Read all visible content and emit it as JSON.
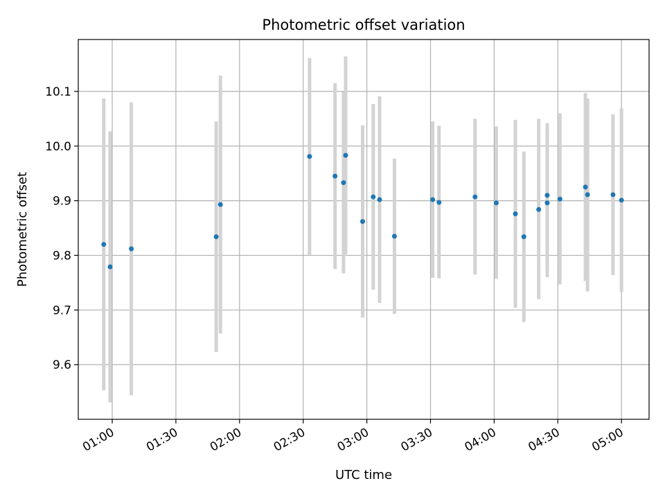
{
  "chart_data": {
    "type": "scatter",
    "title": "Photometric offset variation",
    "xlabel": "UTC time",
    "ylabel": "Photometric offset",
    "x_unit": "UTC time (HH:MM)",
    "xlim": [
      "00:44",
      "05:13"
    ],
    "ylim": [
      9.5,
      10.195
    ],
    "xticks": [
      "01:00",
      "01:30",
      "02:00",
      "02:30",
      "03:00",
      "03:30",
      "04:00",
      "04:30",
      "05:00"
    ],
    "yticks": [
      9.6,
      9.7,
      9.8,
      9.9,
      10.0,
      10.1
    ],
    "ytick_labels": [
      "9.6",
      "9.7",
      "9.8",
      "9.9",
      "10.0",
      "10.1"
    ],
    "grid": true,
    "colors": {
      "points": "#1f77b4",
      "error_bars": "#d3d3d3",
      "grid": "#b0b0b0",
      "axes": "#000000"
    },
    "series": [
      {
        "points": [
          {
            "x": "00:56",
            "y": 9.82,
            "ylow": 9.553,
            "yhigh": 10.087
          },
          {
            "x": "00:59",
            "y": 9.779,
            "ylow": 9.531,
            "yhigh": 10.027
          },
          {
            "x": "01:09",
            "y": 9.812,
            "ylow": 9.544,
            "yhigh": 10.08
          },
          {
            "x": "01:49",
            "y": 9.834,
            "ylow": 9.623,
            "yhigh": 10.045
          },
          {
            "x": "01:51",
            "y": 9.893,
            "ylow": 9.657,
            "yhigh": 10.129
          },
          {
            "x": "02:33",
            "y": 9.981,
            "ylow": 9.801,
            "yhigh": 10.161
          },
          {
            "x": "02:45",
            "y": 9.945,
            "ylow": 9.775,
            "yhigh": 10.115
          },
          {
            "x": "02:49",
            "y": 9.933,
            "ylow": 9.767,
            "yhigh": 10.099
          },
          {
            "x": "02:50",
            "y": 9.983,
            "ylow": 9.802,
            "yhigh": 10.164
          },
          {
            "x": "02:58",
            "y": 9.862,
            "ylow": 9.686,
            "yhigh": 10.038
          },
          {
            "x": "03:03",
            "y": 9.907,
            "ylow": 9.737,
            "yhigh": 10.077
          },
          {
            "x": "03:06",
            "y": 9.902,
            "ylow": 9.713,
            "yhigh": 10.091
          },
          {
            "x": "03:13",
            "y": 9.835,
            "ylow": 9.693,
            "yhigh": 9.977
          },
          {
            "x": "03:31",
            "y": 9.902,
            "ylow": 9.759,
            "yhigh": 10.045
          },
          {
            "x": "03:34",
            "y": 9.897,
            "ylow": 9.758,
            "yhigh": 10.037
          },
          {
            "x": "03:51",
            "y": 9.907,
            "ylow": 9.765,
            "yhigh": 10.05
          },
          {
            "x": "04:01",
            "y": 9.896,
            "ylow": 9.757,
            "yhigh": 10.036
          },
          {
            "x": "04:10",
            "y": 9.876,
            "ylow": 9.704,
            "yhigh": 10.048
          },
          {
            "x": "04:14",
            "y": 9.834,
            "ylow": 9.678,
            "yhigh": 9.99
          },
          {
            "x": "04:21",
            "y": 9.884,
            "ylow": 9.72,
            "yhigh": 10.05
          },
          {
            "x": "04:25",
            "y": 9.91,
            "ylow": 9.778,
            "yhigh": 10.042
          },
          {
            "x": "04:25",
            "y": 9.896,
            "ylow": 9.76,
            "yhigh": 10.032
          },
          {
            "x": "04:31",
            "y": 9.903,
            "ylow": 9.747,
            "yhigh": 10.06
          },
          {
            "x": "04:43",
            "y": 9.925,
            "ylow": 9.753,
            "yhigh": 10.097
          },
          {
            "x": "04:44",
            "y": 9.911,
            "ylow": 9.734,
            "yhigh": 10.087
          },
          {
            "x": "04:56",
            "y": 9.911,
            "ylow": 9.764,
            "yhigh": 10.058
          },
          {
            "x": "05:00",
            "y": 9.901,
            "ylow": 9.733,
            "yhigh": 10.069
          }
        ]
      }
    ]
  }
}
